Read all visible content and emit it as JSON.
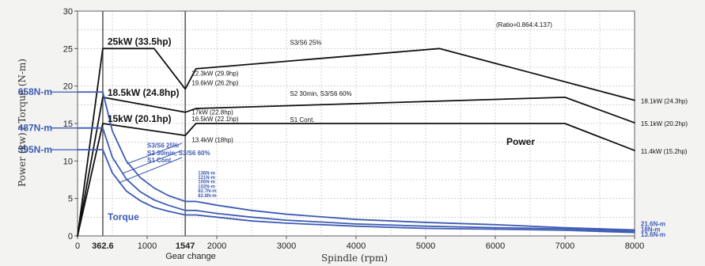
{
  "chart_data": {
    "type": "line",
    "x_axis": {
      "title": "Spindle (rpm)",
      "range": [
        0,
        8000
      ],
      "ticks": [
        "0",
        "1000",
        "2000",
        "3000",
        "4000",
        "5000",
        "6000",
        "7000",
        "8000"
      ],
      "special_ticks": [
        {
          "value": 362.6,
          "label": "362.6"
        },
        {
          "value": 1547,
          "label": "1547"
        }
      ],
      "gear_change_label": "Gear change"
    },
    "y_axis": {
      "title": "Power (kw) / Torque (N-m)",
      "range": [
        0,
        30
      ],
      "ticks": [
        "0",
        "5",
        "10",
        "15",
        "20",
        "25",
        "30"
      ]
    },
    "grid": true,
    "ratio_note": "(Ratio=0.864:4.137)",
    "power_label": "Power",
    "torque_label": "Torque",
    "left_torque_labels": [
      {
        "text": "658N-m",
        "y": 19.2
      },
      {
        "text": "487N-m",
        "y": 14.4
      },
      {
        "text": "395N-m",
        "y": 11.5
      }
    ],
    "series": [
      {
        "name": "S3/S6 25%",
        "group": "power",
        "color": "#111111",
        "x": [
          0,
          362.6,
          1100,
          1547,
          1700,
          5200,
          8000
        ],
        "y": [
          0,
          25,
          25,
          19.6,
          22.3,
          25,
          18.1
        ]
      },
      {
        "name": "S2 30min, S3/S6 60%",
        "group": "power",
        "color": "#111111",
        "x": [
          0,
          362.6,
          1547,
          1700,
          7000,
          8000
        ],
        "y": [
          0,
          18.5,
          16.5,
          17,
          18.5,
          15.1
        ]
      },
      {
        "name": "S1 Cont.",
        "group": "power",
        "color": "#111111",
        "x": [
          0,
          362.6,
          1547,
          1700,
          7000,
          8000
        ],
        "y": [
          0,
          15,
          13.4,
          15,
          15,
          11.4
        ]
      },
      {
        "name": "S3/S6 25%",
        "group": "torque",
        "color": "#3e5cb3",
        "x": [
          0,
          362.6,
          500,
          700,
          900,
          1100,
          1300,
          1547,
          1550,
          1700,
          2000,
          2500,
          3000,
          4000,
          5000,
          6000,
          7000,
          8000
        ],
        "y": [
          19.2,
          19.2,
          14.0,
          10.0,
          7.8,
          6.4,
          5.4,
          4.6,
          4.6,
          4.6,
          4.1,
          3.4,
          2.9,
          2.2,
          1.8,
          1.5,
          1.1,
          0.8
        ]
      },
      {
        "name": "S2 30min, S3/S6 60%",
        "group": "torque",
        "color": "#3e5cb3",
        "x": [
          0,
          362.6,
          500,
          700,
          900,
          1100,
          1300,
          1547,
          1550,
          1700,
          2000,
          2500,
          3000,
          4000,
          5000,
          6000,
          7000,
          8000
        ],
        "y": [
          14.4,
          14.4,
          10.5,
          7.6,
          5.9,
          4.8,
          4.1,
          3.4,
          3.4,
          3.4,
          3.0,
          2.5,
          2.1,
          1.6,
          1.3,
          1.1,
          0.95,
          0.6
        ]
      },
      {
        "name": "S1 Cont.",
        "group": "torque",
        "color": "#3e5cb3",
        "x": [
          0,
          362.6,
          500,
          700,
          900,
          1100,
          1300,
          1547,
          1550,
          1700,
          2000,
          2500,
          3000,
          4000,
          5000,
          6000,
          7000,
          8000
        ],
        "y": [
          11.5,
          11.5,
          8.4,
          6.0,
          4.7,
          3.8,
          3.3,
          2.8,
          2.8,
          2.8,
          2.5,
          2.0,
          1.7,
          1.3,
          1.0,
          0.9,
          0.75,
          0.45
        ]
      }
    ],
    "annotations": [
      {
        "text": "25kW (33.5hp)",
        "x": 430,
        "y": 25.5,
        "size": 12,
        "bold": true,
        "color": "#111111"
      },
      {
        "text": "18.5kW (24.8hp)",
        "x": 430,
        "y": 18.7,
        "size": 12,
        "bold": true,
        "color": "#111111"
      },
      {
        "text": "15kW (20.1hp)",
        "x": 430,
        "y": 15.2,
        "size": 12,
        "bold": true,
        "color": "#111111"
      },
      {
        "text": "S3/S6 25%",
        "x": 3050,
        "y": 25.5,
        "size": 8,
        "bold": false,
        "color": "#111111"
      },
      {
        "text": "S2 30min, S3/S6 60%",
        "x": 3050,
        "y": 18.7,
        "size": 8,
        "bold": false,
        "color": "#111111"
      },
      {
        "text": "S1 Cont.",
        "x": 3050,
        "y": 15.2,
        "size": 8,
        "bold": false,
        "color": "#111111"
      },
      {
        "text": "22.3kW (29.9hp)",
        "x": 1640,
        "y": 21.4,
        "size": 8,
        "bold": false,
        "color": "#111111"
      },
      {
        "text": "19.6kW (26.2hp)",
        "x": 1640,
        "y": 20.1,
        "size": 8,
        "bold": false,
        "color": "#111111"
      },
      {
        "text": "17kW (22.8hp)",
        "x": 1640,
        "y": 16.2,
        "size": 8,
        "bold": false,
        "color": "#111111"
      },
      {
        "text": "16.5kW (22.1hp)",
        "x": 1640,
        "y": 15.3,
        "size": 8,
        "bold": false,
        "color": "#111111"
      },
      {
        "text": "13.4kW (18hp)",
        "x": 1640,
        "y": 12.5,
        "size": 8,
        "bold": false,
        "color": "#111111"
      },
      {
        "text": "18.1kW (24.3hp)",
        "x": 8090,
        "y": 17.7,
        "size": 8,
        "bold": false,
        "color": "#111111"
      },
      {
        "text": "15.1kW (20.2hp)",
        "x": 8090,
        "y": 14.7,
        "size": 8,
        "bold": false,
        "color": "#111111"
      },
      {
        "text": "11.4kW (15.2hp)",
        "x": 8090,
        "y": 11.0,
        "size": 8,
        "bold": false,
        "color": "#111111"
      },
      {
        "text": "S3/S6 25%",
        "x": 1000,
        "y": 11.8,
        "size": 8,
        "bold": true,
        "color": "#3e5cb3"
      },
      {
        "text": "S2 30min, S3/S6 60%",
        "x": 1000,
        "y": 10.8,
        "size": 8,
        "bold": true,
        "color": "#3e5cb3"
      },
      {
        "text": "S1 Cont.",
        "x": 1000,
        "y": 9.8,
        "size": 8,
        "bold": true,
        "color": "#3e5cb3"
      },
      {
        "text": "136N-m",
        "x": 1730,
        "y": 8.2,
        "size": 6,
        "bold": true,
        "color": "#3e5cb3"
      },
      {
        "text": "121N-m",
        "x": 1730,
        "y": 7.6,
        "size": 6,
        "bold": true,
        "color": "#3e5cb3"
      },
      {
        "text": "105N-m",
        "x": 1730,
        "y": 7.0,
        "size": 6,
        "bold": true,
        "color": "#3e5cb3"
      },
      {
        "text": "102N-m",
        "x": 1730,
        "y": 6.4,
        "size": 6,
        "bold": true,
        "color": "#3e5cb3"
      },
      {
        "text": "82.7N-m",
        "x": 1730,
        "y": 5.8,
        "size": 6,
        "bold": true,
        "color": "#3e5cb3"
      },
      {
        "text": "82.8N-m",
        "x": 1730,
        "y": 5.2,
        "size": 6,
        "bold": true,
        "color": "#3e5cb3"
      },
      {
        "text": "21.6N-m",
        "x": 8090,
        "y": 1.3,
        "size": 8,
        "bold": true,
        "color": "#3e5cb3"
      },
      {
        "text": "18N-m",
        "x": 8090,
        "y": 0.6,
        "size": 8,
        "bold": true,
        "color": "#3e5cb3"
      },
      {
        "text": "13.6N-m",
        "x": 8090,
        "y": -0.1,
        "size": 8,
        "bold": true,
        "color": "#3e5cb3"
      }
    ]
  }
}
